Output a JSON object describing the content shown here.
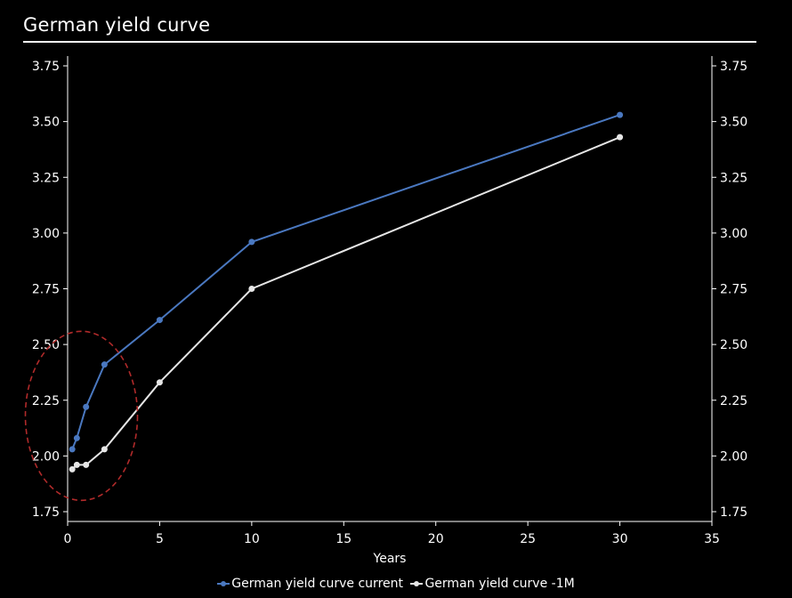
{
  "chart_data": {
    "type": "line",
    "title": "German yield curve",
    "xlabel": "Years",
    "ylabel": "",
    "xlim": [
      0,
      35
    ],
    "ylim": [
      1.75,
      3.75
    ],
    "xticks": [
      "0",
      "5",
      "10",
      "15",
      "20",
      "25",
      "30",
      "35"
    ],
    "yticks": [
      "1.75",
      "2.00",
      "2.25",
      "2.50",
      "2.75",
      "3.00",
      "3.25",
      "3.50",
      "3.75"
    ],
    "grid": false,
    "legend": "bottom",
    "series": [
      {
        "name": "German yield curve current",
        "color": "#4a78c0",
        "x": [
          0.25,
          0.5,
          1,
          2,
          5,
          10,
          30
        ],
        "y": [
          2.03,
          2.08,
          2.22,
          2.41,
          2.61,
          2.96,
          3.53
        ]
      },
      {
        "name": "German yield curve -1M",
        "color": "#e6e6e6",
        "x": [
          0.25,
          0.5,
          1,
          2,
          5,
          10,
          30
        ],
        "y": [
          1.94,
          1.96,
          1.96,
          2.03,
          2.33,
          2.75,
          3.43
        ]
      }
    ],
    "annotation": {
      "shape": "ellipse",
      "style": "dashed",
      "color": "#b02a2a",
      "x_center": 0.75,
      "y_center": 2.18
    }
  }
}
